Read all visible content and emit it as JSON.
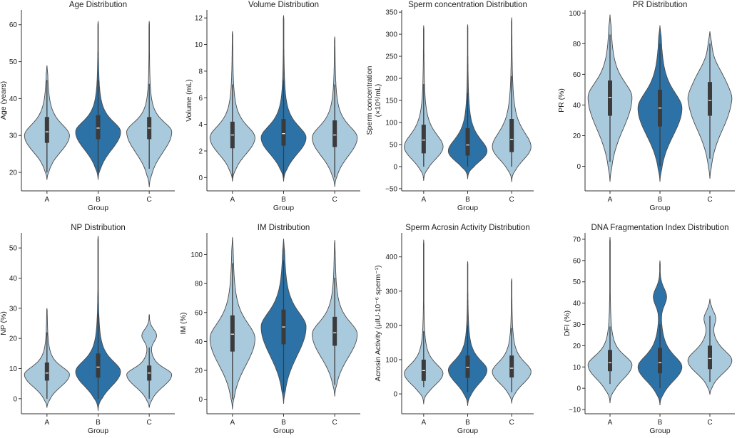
{
  "chart_data": [
    {
      "type": "violin",
      "title": "Age Distribution",
      "xlabel": "Group",
      "ylabel": [
        "Age (years)"
      ],
      "categories": [
        "A",
        "B",
        "C"
      ],
      "ylim": [
        15,
        64
      ],
      "yticks": [
        20,
        30,
        40,
        50,
        60
      ],
      "violins": [
        {
          "min": 18,
          "max": 49,
          "mode": 30,
          "q1": 28,
          "median": 31,
          "q3": 35,
          "wlo": 20,
          "whi": 45,
          "bumps": []
        },
        {
          "min": 18,
          "max": 61,
          "mode": 31,
          "q1": 29,
          "median": 32,
          "q3": 35.5,
          "wlo": 20,
          "whi": 45,
          "bumps": []
        },
        {
          "min": 16,
          "max": 61,
          "mode": 31,
          "q1": 29,
          "median": 32,
          "q3": 35,
          "wlo": 21,
          "whi": 44,
          "bumps": []
        }
      ]
    },
    {
      "type": "violin",
      "title": "Volume Distribution",
      "xlabel": "Group",
      "ylabel": [
        "Volume (mL)"
      ],
      "categories": [
        "A",
        "B",
        "C"
      ],
      "ylim": [
        -1,
        12.6
      ],
      "yticks": [
        0,
        2,
        4,
        6,
        8,
        10,
        12
      ],
      "violins": [
        {
          "min": -0.3,
          "max": 11,
          "mode": 3,
          "q1": 2.2,
          "median": 3.2,
          "q3": 4.2,
          "wlo": 0,
          "whi": 7,
          "bumps": []
        },
        {
          "min": -0.3,
          "max": 12.2,
          "mode": 3,
          "q1": 2.4,
          "median": 3.3,
          "q3": 4.4,
          "wlo": 0,
          "whi": 7.3,
          "bumps": []
        },
        {
          "min": -0.7,
          "max": 10.6,
          "mode": 3,
          "q1": 2.3,
          "median": 3.2,
          "q3": 4.3,
          "wlo": 0,
          "whi": 7,
          "bumps": []
        }
      ]
    },
    {
      "type": "violin",
      "title": "Sperm concentration Distribution",
      "xlabel": "Group",
      "ylabel": [
        "Sperm concentration",
        "(×10⁶/mL)"
      ],
      "categories": [
        "A",
        "B",
        "C"
      ],
      "ylim": [
        -55,
        355
      ],
      "yticks": [
        -50,
        0,
        50,
        100,
        150,
        200,
        250,
        300,
        350
      ],
      "violins": [
        {
          "min": -32,
          "max": 320,
          "mode": 45,
          "q1": 30,
          "median": 60,
          "q3": 95,
          "wlo": 0,
          "whi": 187,
          "bumps": []
        },
        {
          "min": -28,
          "max": 322,
          "mode": 35,
          "q1": 25,
          "median": 49,
          "q3": 87,
          "wlo": 0,
          "whi": 167,
          "bumps": []
        },
        {
          "min": -35,
          "max": 338,
          "mode": 45,
          "q1": 33,
          "median": 62,
          "q3": 108,
          "wlo": 0,
          "whi": 205,
          "bumps": []
        }
      ]
    },
    {
      "type": "violin",
      "title": "PR Distribution",
      "xlabel": "Group",
      "ylabel": [
        "PR (%)"
      ],
      "categories": [
        "A",
        "B",
        "C"
      ],
      "ylim": [
        -16,
        102
      ],
      "yticks": [
        0,
        20,
        40,
        60,
        80,
        100
      ],
      "violins": [
        {
          "min": -10,
          "max": 99,
          "mode": 45,
          "q1": 33,
          "median": 45,
          "q3": 56,
          "wlo": 3,
          "whi": 86,
          "bumps": []
        },
        {
          "min": -10,
          "max": 92,
          "mode": 38,
          "q1": 26,
          "median": 38,
          "q3": 50,
          "wlo": 0,
          "whi": 80,
          "bumps": []
        },
        {
          "min": -8,
          "max": 88,
          "mode": 43,
          "q1": 33,
          "median": 43,
          "q3": 55,
          "wlo": 5,
          "whi": 80,
          "bumps": [
            {
              "y": 58,
              "w": 0.25,
              "s": 8
            }
          ]
        }
      ]
    },
    {
      "type": "violin",
      "title": "NP Distribution",
      "xlabel": "Group",
      "ylabel": [
        "NP (%)"
      ],
      "categories": [
        "A",
        "B",
        "C"
      ],
      "ylim": [
        -5,
        55
      ],
      "yticks": [
        0,
        10,
        20,
        30,
        40,
        50
      ],
      "violins": [
        {
          "min": -3,
          "max": 30,
          "mode": 8,
          "q1": 6,
          "median": 8.5,
          "q3": 12,
          "wlo": 0,
          "whi": 22,
          "bumps": []
        },
        {
          "min": -4,
          "max": 54,
          "mode": 9,
          "q1": 7,
          "median": 10.5,
          "q3": 15,
          "wlo": 0,
          "whi": 28,
          "bumps": []
        },
        {
          "min": -3,
          "max": 28,
          "mode": 8,
          "q1": 6,
          "median": 8.5,
          "q3": 11,
          "wlo": 0,
          "whi": 17,
          "bumps": [
            {
              "y": 21,
              "w": 0.3,
              "s": 2
            }
          ]
        }
      ]
    },
    {
      "type": "violin",
      "title": "IM Distribution",
      "xlabel": "Group",
      "ylabel": [
        "IM (%)"
      ],
      "categories": [
        "A",
        "B",
        "C"
      ],
      "ylim": [
        -10,
        115
      ],
      "yticks": [
        0,
        20,
        40,
        60,
        80,
        100
      ],
      "violins": [
        {
          "min": -7,
          "max": 112,
          "mode": 42,
          "q1": 33,
          "median": 45,
          "q3": 58,
          "wlo": 0,
          "whi": 94,
          "bumps": []
        },
        {
          "min": -3,
          "max": 111,
          "mode": 50,
          "q1": 38,
          "median": 50,
          "q3": 62,
          "wlo": 5,
          "whi": 96,
          "bumps": []
        },
        {
          "min": 2,
          "max": 110,
          "mode": 45,
          "q1": 37,
          "median": 46,
          "q3": 57,
          "wlo": 10,
          "whi": 84,
          "bumps": []
        }
      ]
    },
    {
      "type": "violin",
      "title": "Sperm Acrosin Activity Distribution",
      "xlabel": "Group",
      "ylabel": [
        "Acrosin Activity (μIU·10⁻⁶ sperm⁻¹)"
      ],
      "categories": [
        "A",
        "B",
        "C"
      ],
      "ylim": [
        -58,
        470
      ],
      "yticks": [
        0,
        100,
        200,
        300,
        400
      ],
      "violins": [
        {
          "min": -30,
          "max": 450,
          "mode": 60,
          "q1": 38,
          "median": 68,
          "q3": 100,
          "wlo": 20,
          "whi": 183,
          "bumps": []
        },
        {
          "min": -35,
          "max": 387,
          "mode": 70,
          "q1": 47,
          "median": 78,
          "q3": 112,
          "wlo": 5,
          "whi": 200,
          "bumps": []
        },
        {
          "min": -28,
          "max": 337,
          "mode": 65,
          "q1": 48,
          "median": 75,
          "q3": 112,
          "wlo": 5,
          "whi": 192,
          "bumps": []
        }
      ]
    },
    {
      "type": "violin",
      "title": "DNA Fragmentation Index Distribution",
      "xlabel": "Group",
      "ylabel": [
        "DFI (%)"
      ],
      "categories": [
        "A",
        "B",
        "C"
      ],
      "ylim": [
        -12,
        73
      ],
      "yticks": [
        -10,
        0,
        10,
        20,
        30,
        40,
        50,
        60,
        70
      ],
      "violins": [
        {
          "min": -7,
          "max": 71,
          "mode": 11,
          "q1": 8,
          "median": 12,
          "q3": 18,
          "wlo": 2,
          "whi": 29,
          "bumps": []
        },
        {
          "min": -8,
          "max": 60,
          "mode": 10,
          "q1": 7,
          "median": 12,
          "q3": 19,
          "wlo": 0,
          "whi": 30,
          "bumps": [
            {
              "y": 43,
              "w": 0.28,
              "s": 4
            }
          ]
        },
        {
          "min": -3,
          "max": 42,
          "mode": 13,
          "q1": 9,
          "median": 14,
          "q3": 20,
          "wlo": 3,
          "whi": 34,
          "bumps": [
            {
              "y": 33,
              "w": 0.2,
              "s": 3
            }
          ]
        }
      ]
    }
  ],
  "colors": {
    "light": "#a9c9dd",
    "dark": "#2d72a7",
    "outline": "#4a4a4a",
    "box": "#3b3b3b",
    "median": "#ffffff",
    "axis": "#333333"
  }
}
